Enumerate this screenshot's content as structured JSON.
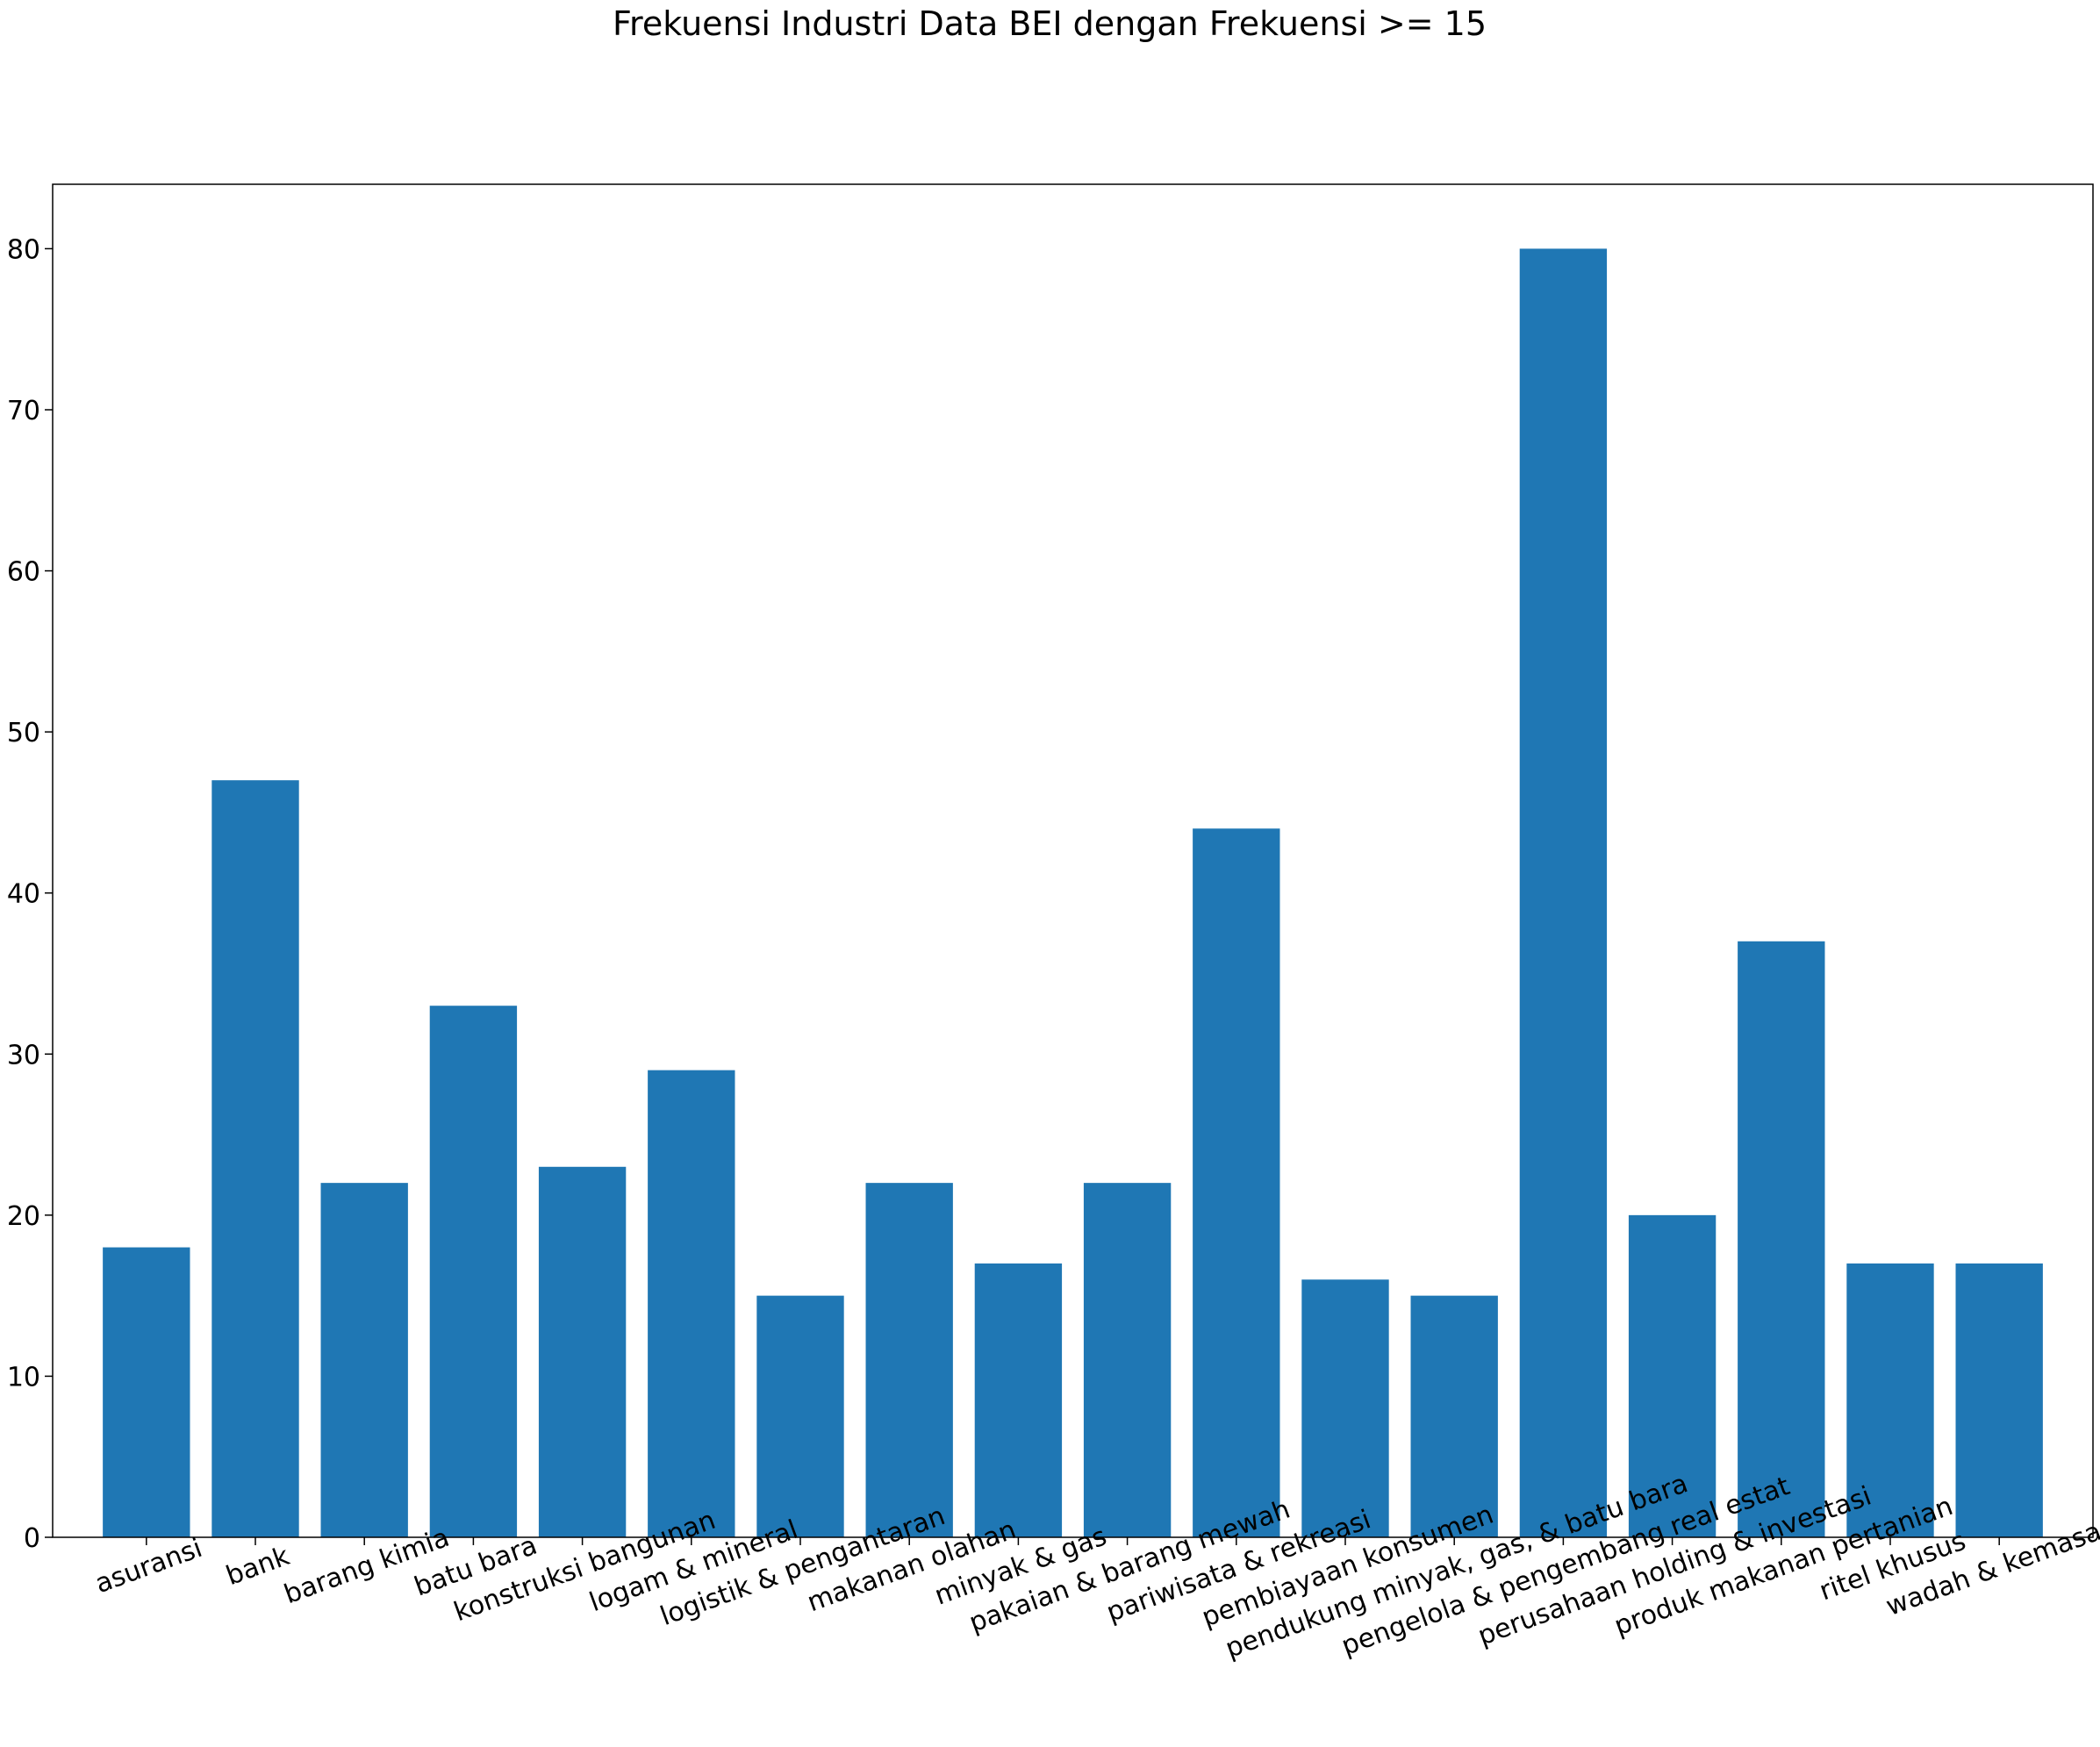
{
  "chart_data": {
    "type": "bar",
    "title": "Frekuensi Industri Data BEI dengan Frekuensi >= 15",
    "xlabel": "",
    "ylabel": "",
    "categories": [
      "asuransi",
      "bank",
      "barang kimia",
      "batu bara",
      "konstruksi bangunan",
      "logam & mineral",
      "logistik & pengantaran",
      "makanan olahan",
      "minyak & gas",
      "pakaian & barang mewah",
      "pariwisata & rekreasi",
      "pembiayaan konsumen",
      "pendukung minyak, gas, & batu bara",
      "pengelola & pengembang real estat",
      "perusahaan holding & investasi",
      "produk makanan pertanian",
      "ritel khusus",
      "wadah & kemasan"
    ],
    "values": [
      18,
      47,
      22,
      33,
      23,
      29,
      15,
      22,
      17,
      22,
      44,
      16,
      15,
      80,
      20,
      37,
      17,
      17
    ],
    "ylim": [
      0,
      84
    ],
    "yticks": [
      0,
      10,
      20,
      30,
      40,
      50,
      60,
      70,
      80
    ],
    "bar_color": "#1f77b4",
    "grid": false,
    "xtick_rotation": 20
  }
}
